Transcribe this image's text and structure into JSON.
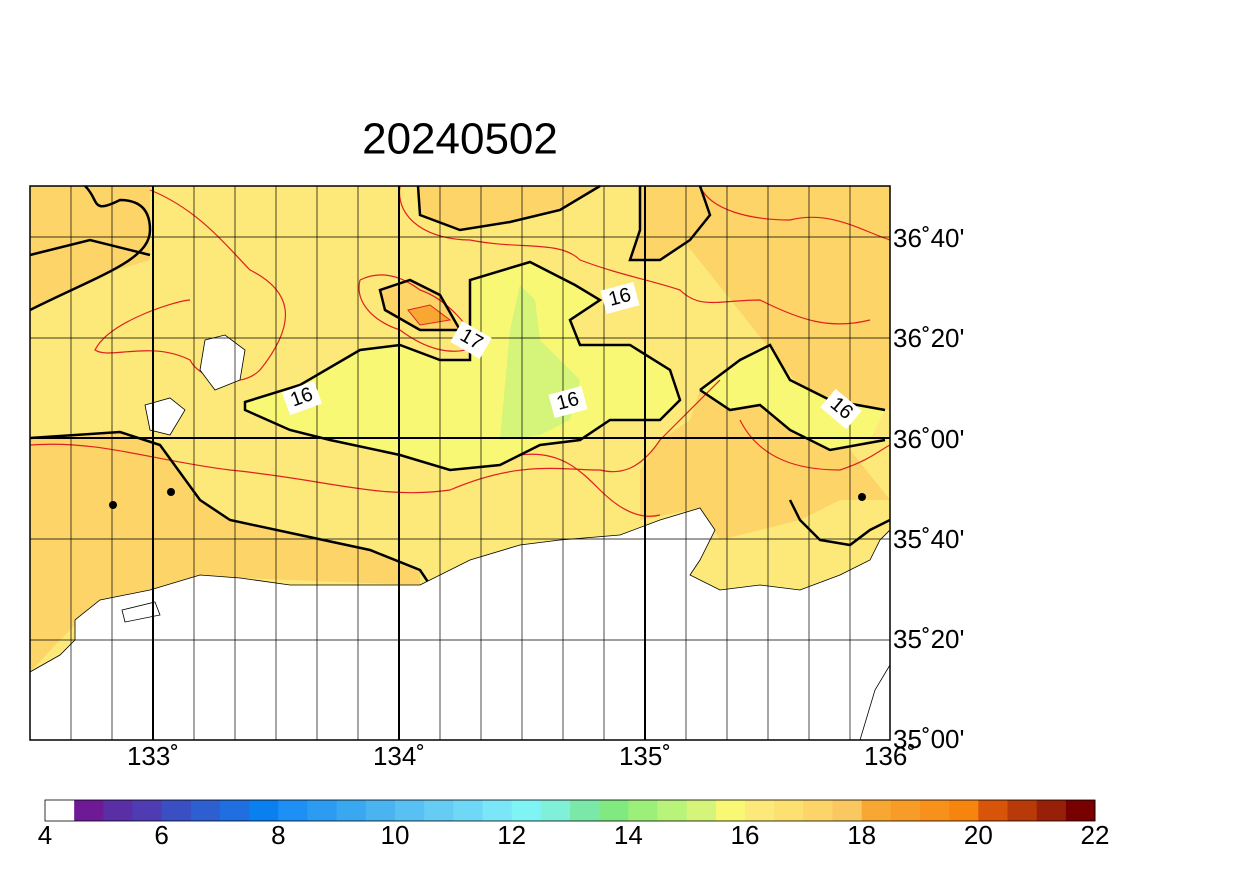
{
  "title": "20240502",
  "lat_labels": [
    "36˚40'",
    "36˚20'",
    "36˚00'",
    "35˚40'",
    "35˚20'",
    "35˚00'"
  ],
  "lon_labels": [
    "133˚",
    "134˚",
    "135˚",
    "136˚"
  ],
  "contour_labels": [
    "16",
    "17",
    "16",
    "16",
    "16"
  ],
  "colorbar": {
    "lim": [
      4,
      22
    ],
    "ticks": [
      4,
      6,
      8,
      10,
      12,
      14,
      16,
      18,
      20,
      22
    ],
    "colors": [
      "#ffffff",
      "#6e1a96",
      "#5a2fa6",
      "#4f3cb3",
      "#3a4fc4",
      "#2e5fd0",
      "#1f6fe0",
      "#0a80f0",
      "#1e90f5",
      "#2c9cf2",
      "#3aa8f0",
      "#4ab4f0",
      "#58c0f2",
      "#66ccf4",
      "#6ed8f6",
      "#7ae6f8",
      "#7ef4f4",
      "#80f0d8",
      "#7ae8a8",
      "#80ea80",
      "#9cf07a",
      "#b8f47a",
      "#d4f47a",
      "#f8f874",
      "#fde87a",
      "#fce070",
      "#fcd468",
      "#fac860",
      "#f8a832",
      "#f89c28",
      "#f8901c",
      "#f88410",
      "#d85408",
      "#b83a08",
      "#982008",
      "#780000"
    ]
  }
}
